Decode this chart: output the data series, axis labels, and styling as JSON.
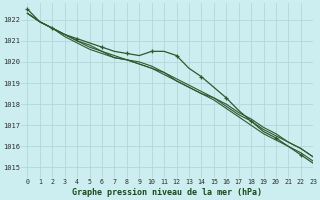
{
  "title": "Graphe pression niveau de la mer (hPa)",
  "bg_color": "#cceef0",
  "grid_color": "#b0d8da",
  "line_color": "#2d5a2d",
  "xlim": [
    -0.5,
    23
  ],
  "ylim": [
    1014.5,
    1022.8
  ],
  "yticks": [
    1015,
    1016,
    1017,
    1018,
    1019,
    1020,
    1021,
    1022
  ],
  "xticks": [
    0,
    1,
    2,
    3,
    4,
    5,
    6,
    7,
    8,
    9,
    10,
    11,
    12,
    13,
    14,
    15,
    16,
    17,
    18,
    19,
    20,
    21,
    22,
    23
  ],
  "series": [
    [
      1022.3,
      1021.9,
      1021.6,
      1021.2,
      1020.9,
      1020.6,
      1020.4,
      1020.2,
      1020.1,
      1020.0,
      1019.8,
      1019.5,
      1019.1,
      1018.8,
      1018.5,
      1018.2,
      1017.8,
      1017.4,
      1017.0,
      1016.6,
      1016.3,
      1016.0,
      1015.7,
      1015.3
    ],
    [
      1022.3,
      1021.9,
      1021.6,
      1021.3,
      1021.0,
      1020.7,
      1020.5,
      1020.2,
      1020.1,
      1019.9,
      1019.7,
      1019.4,
      1019.1,
      1018.8,
      1018.5,
      1018.3,
      1017.9,
      1017.5,
      1017.2,
      1016.8,
      1016.5,
      1016.2,
      1015.9,
      1015.5
    ],
    [
      1022.3,
      1021.9,
      1021.6,
      1021.3,
      1021.0,
      1020.8,
      1020.5,
      1020.3,
      1020.1,
      1019.9,
      1019.7,
      1019.5,
      1019.2,
      1018.9,
      1018.6,
      1018.3,
      1018.0,
      1017.6,
      1017.3,
      1016.9,
      1016.6,
      1016.2,
      1015.9,
      1015.5
    ],
    [
      1022.5,
      1021.9,
      1021.6,
      1021.3,
      1021.1,
      1020.9,
      1020.7,
      1020.5,
      1020.4,
      1020.3,
      1020.5,
      1020.5,
      1020.3,
      1019.7,
      1019.3,
      1018.8,
      1018.3,
      1017.7,
      1017.2,
      1016.7,
      1016.4,
      1016.0,
      1015.6,
      1015.2
    ]
  ],
  "marker_series": 3,
  "marker_indices": [
    0,
    2,
    4,
    6,
    8,
    10,
    12,
    14,
    16,
    18,
    20,
    22
  ]
}
